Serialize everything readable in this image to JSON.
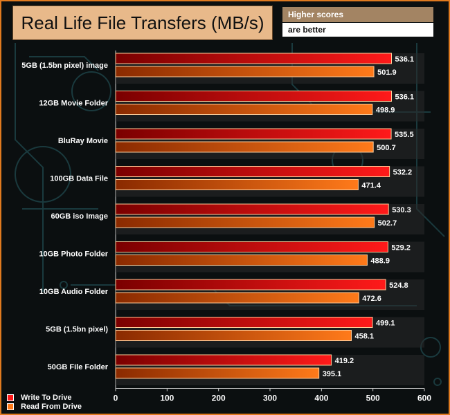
{
  "header": {
    "title": "Real Life File Transfers (MB/s)",
    "note_line1": "Higher scores",
    "note_line2": "are better"
  },
  "legend": {
    "items": [
      {
        "label": "Write To  Drive",
        "color": "#ff1a1a"
      },
      {
        "label": "Read From  Drive",
        "color": "#ff7a1a"
      }
    ]
  },
  "chart_data": {
    "type": "bar",
    "orientation": "horizontal",
    "title": "Real Life File Transfers (MB/s)",
    "categories": [
      "5GB (1.5bn pixel) image",
      "12GB Movie Folder",
      "BluRay Movie",
      "100GB Data File",
      "60GB iso Image",
      "10GB Photo Folder",
      "10GB Audio Folder",
      "5GB (1.5bn pixel)",
      "50GB File Folder"
    ],
    "series": [
      {
        "name": "Write To  Drive",
        "color": "#ff1a1a",
        "values": [
          536.1,
          536.1,
          535.5,
          532.2,
          530.3,
          529.2,
          524.8,
          499.1,
          419.2
        ]
      },
      {
        "name": "Read From  Drive",
        "color": "#ff7a1a",
        "values": [
          501.9,
          498.9,
          500.7,
          471.4,
          502.7,
          488.9,
          472.6,
          458.1,
          395.1
        ]
      }
    ],
    "value_labels": [
      [
        "536.1",
        "536.1",
        "535.5",
        "532.2",
        "530.3",
        "529.2",
        "524.8",
        "499.1",
        "419.2"
      ],
      [
        "501.9",
        "498.9",
        "500.7",
        "471.4",
        "502.7",
        "488.9",
        "472.6",
        "458.1",
        "395.1"
      ]
    ],
    "xlim": [
      0,
      600
    ],
    "xticks": [
      0,
      100,
      200,
      300,
      400,
      500,
      600
    ],
    "xtick_labels": [
      "0",
      "100",
      "200",
      "300",
      "400",
      "500",
      "600"
    ],
    "legend_position": "bottom-left",
    "grid": false
  }
}
